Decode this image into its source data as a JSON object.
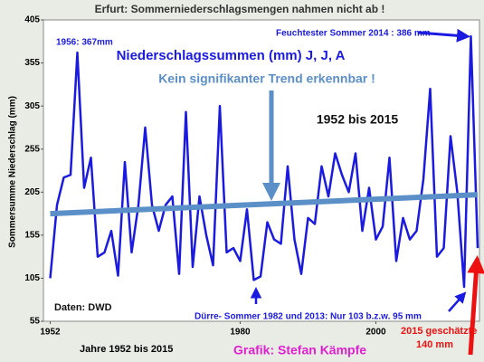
{
  "chart_data": {
    "type": "line",
    "title": "Erfurt: Sommerniederschlagsmengen nahmen nicht ab !",
    "subtitle": "Niederschlagssummen (mm) J, J, A",
    "ylabel": "Sommersumme  Niederschlag (mm)",
    "xlabel": "Jahre 1952 bis 2015",
    "credit": "Grafik: Stefan Kämpfe",
    "annotations": [
      "1956: 367mm",
      "Feuchtester Sommer 2014 : 386 mm",
      "Kein signifikanter Trend erkennbar !",
      "1952 bis 2015",
      "Daten: DWD",
      "Dürre- Sommer 1982 und 2013:  Nur 103 b.z.w. 95 mm",
      "2015 geschätzte",
      "140 mm"
    ],
    "x": [
      1952,
      1953,
      1954,
      1955,
      1956,
      1957,
      1958,
      1959,
      1960,
      1961,
      1962,
      1963,
      1964,
      1965,
      1966,
      1967,
      1968,
      1969,
      1970,
      1971,
      1972,
      1973,
      1974,
      1975,
      1976,
      1977,
      1978,
      1979,
      1980,
      1981,
      1982,
      1983,
      1984,
      1985,
      1986,
      1987,
      1988,
      1989,
      1990,
      1991,
      1992,
      1993,
      1994,
      1995,
      1996,
      1997,
      1998,
      1999,
      2000,
      2001,
      2002,
      2003,
      2004,
      2005,
      2006,
      2007,
      2008,
      2009,
      2010,
      2011,
      2012,
      2013,
      2014,
      2015
    ],
    "series": [
      {
        "color": "#1a1ae0",
        "values": [
          105,
          190,
          222,
          225,
          367,
          210,
          245,
          130,
          135,
          160,
          108,
          240,
          135,
          190,
          280,
          190,
          160,
          190,
          200,
          110,
          298,
          118,
          200,
          155,
          120,
          305,
          135,
          140,
          125,
          185,
          103,
          107,
          170,
          150,
          145,
          235,
          150,
          110,
          175,
          168,
          235,
          200,
          250,
          225,
          205,
          250,
          160,
          210,
          150,
          165,
          245,
          125,
          175,
          150,
          160,
          220,
          325,
          130,
          140,
          270,
          205,
          95,
          386,
          140
        ]
      }
    ],
    "trend_line": {
      "x": [
        1952,
        2015
      ],
      "values": [
        180,
        202
      ],
      "color": "#5b8fc7"
    },
    "xlim": [
      1951,
      2015
    ],
    "xticks": [
      1952,
      1980,
      2000
    ],
    "ylim": [
      55,
      405
    ],
    "yticks": [
      55,
      105,
      155,
      205,
      255,
      305,
      355,
      405
    ],
    "grid": false
  }
}
